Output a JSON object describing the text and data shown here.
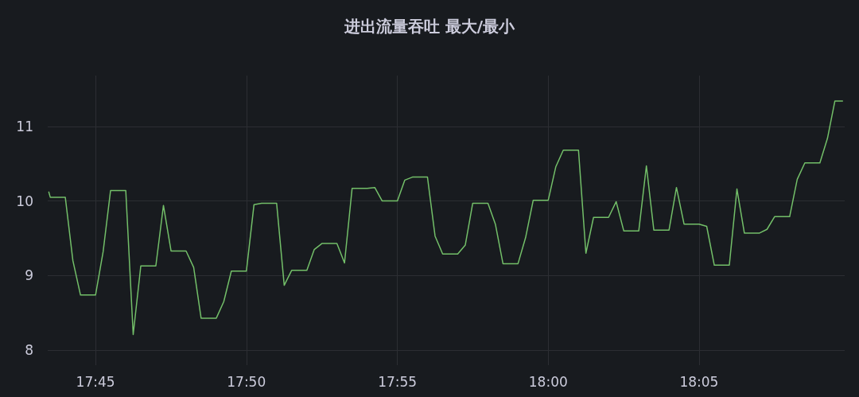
{
  "chart_data": {
    "type": "line",
    "title": "进出流量吞吐 最大/最小",
    "x": [
      17.7242,
      17.725,
      17.7333,
      17.7375,
      17.7417,
      17.75,
      17.7542,
      17.7583,
      17.7667,
      17.7708,
      17.775,
      17.7833,
      17.7875,
      17.7917,
      17.8,
      17.8042,
      17.8083,
      17.8167,
      17.8208,
      17.825,
      17.8333,
      17.8375,
      17.8417,
      17.85,
      17.8542,
      17.8583,
      17.8667,
      17.8708,
      17.875,
      17.8833,
      17.8875,
      17.8917,
      17.9,
      17.9042,
      17.9083,
      17.9167,
      17.9208,
      17.925,
      17.9333,
      17.9375,
      17.9417,
      17.95,
      17.9542,
      17.9583,
      17.9667,
      17.9708,
      17.975,
      17.9833,
      17.9875,
      17.9917,
      18.0,
      18.0042,
      18.0083,
      18.0167,
      18.0208,
      18.025,
      18.0333,
      18.0375,
      18.0417,
      18.05,
      18.0542,
      18.0583,
      18.0667,
      18.0708,
      18.075,
      18.0833,
      18.0875,
      18.0917,
      18.1,
      18.1042,
      18.1083,
      18.1167,
      18.1208,
      18.125,
      18.1333,
      18.1375,
      18.1417,
      18.15,
      18.1542,
      18.1583,
      18.1625
    ],
    "series": [
      {
        "color": "#73bf69",
        "values": [
          10.12,
          10.05,
          10.05,
          9.2,
          8.74,
          8.74,
          9.32,
          10.14,
          10.14,
          8.21,
          9.13,
          9.13,
          9.94,
          9.33,
          9.33,
          9.11,
          8.43,
          8.43,
          8.65,
          9.06,
          9.06,
          9.95,
          9.97,
          9.97,
          8.87,
          9.07,
          9.07,
          9.35,
          9.43,
          9.43,
          9.17,
          10.17,
          10.17,
          10.18,
          10.0,
          10.0,
          10.28,
          10.32,
          10.32,
          9.53,
          9.29,
          9.29,
          9.41,
          9.97,
          9.97,
          9.69,
          9.16,
          9.16,
          9.51,
          10.01,
          10.01,
          10.46,
          10.68,
          10.68,
          9.3,
          9.78,
          9.78,
          9.99,
          9.6,
          9.6,
          10.47,
          9.61,
          9.61,
          10.18,
          9.69,
          9.69,
          9.66,
          9.14,
          9.14,
          10.16,
          9.57,
          9.57,
          9.62,
          9.79,
          9.79,
          10.29,
          10.51,
          10.51,
          10.84,
          11.34,
          11.34
        ]
      }
    ],
    "xlim": [
      17.7236,
      18.1637
    ],
    "xticks": [
      {
        "value": 17.75,
        "label": "17:45"
      },
      {
        "value": 17.8333,
        "label": "17:50"
      },
      {
        "value": 17.9167,
        "label": "17:55"
      },
      {
        "value": 18,
        "label": "18:00"
      },
      {
        "value": 18.0833,
        "label": "18:05"
      }
    ],
    "ylim": [
      7.8,
      11.68
    ],
    "yticks": [
      8,
      9,
      10,
      11
    ],
    "grid": true,
    "marker": "none",
    "line_style": "solid"
  }
}
